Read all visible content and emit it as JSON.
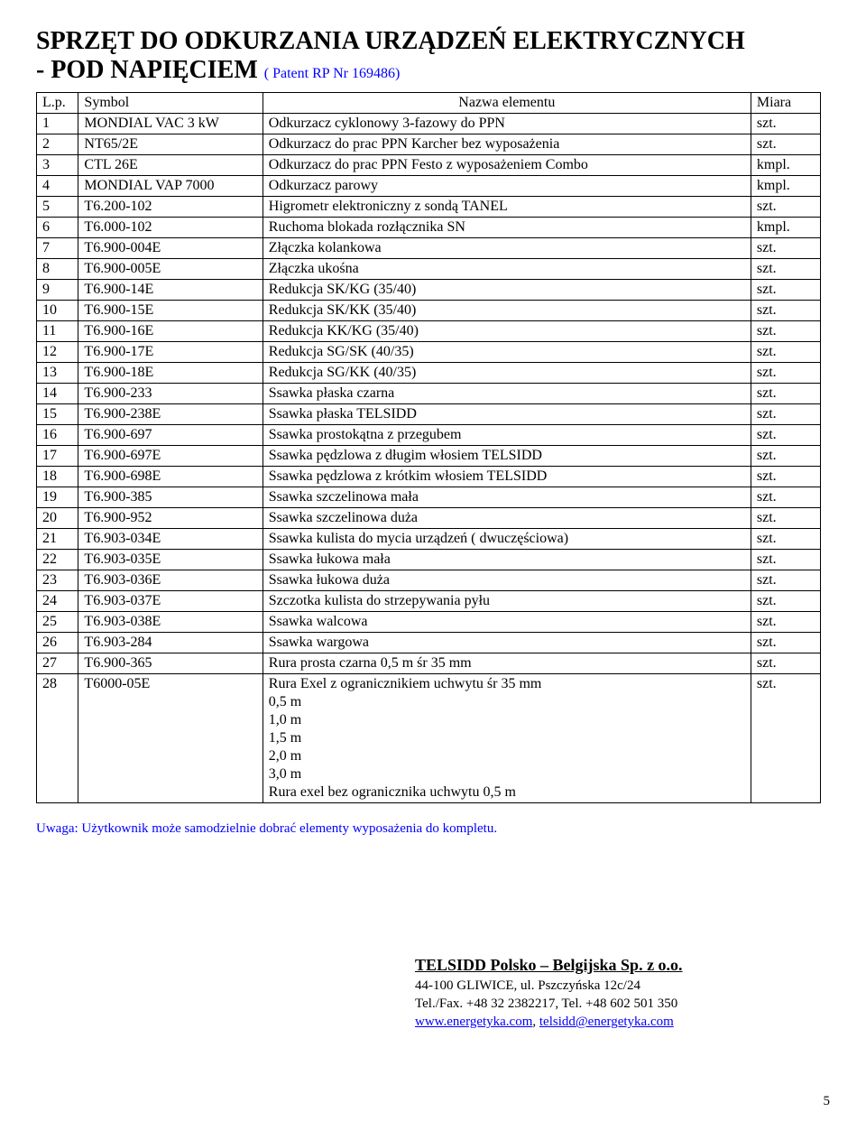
{
  "title_line1": "SPRZĘT DO ODKURZANIA URZĄDZEŃ ELEKTRYCZNYCH",
  "title_line2_prefix": "   - POD NAPIĘCIEM ",
  "patent": "( Patent RP Nr 169486)",
  "table": {
    "headers": {
      "lp": "L.p.",
      "symbol": "Symbol",
      "name": "Nazwa elementu",
      "miara": "Miara"
    },
    "rows": [
      {
        "lp": "1",
        "symbol": "MONDIAL VAC 3 kW",
        "name": "Odkurzacz cyklonowy 3-fazowy do PPN",
        "miara": "szt."
      },
      {
        "lp": "2",
        "symbol": "NT65/2E",
        "name": "Odkurzacz do prac PPN Karcher bez wyposażenia",
        "miara": "szt."
      },
      {
        "lp": "3",
        "symbol": "CTL 26E",
        "name": "Odkurzacz do prac PPN Festo z wyposażeniem Combo",
        "miara": "kmpl."
      },
      {
        "lp": "4",
        "symbol": "MONDIAL VAP 7000",
        "name": "Odkurzacz parowy",
        "miara": "kmpl."
      },
      {
        "lp": "5",
        "symbol": "T6.200-102",
        "name": "Higrometr elektroniczny z sondą TANEL",
        "miara": "szt."
      },
      {
        "lp": "6",
        "symbol": "T6.000-102",
        "name": "Ruchoma blokada rozłącznika SN",
        "miara": "kmpl."
      },
      {
        "lp": "7",
        "symbol": "T6.900-004E",
        "name": "Złączka kolankowa",
        "miara": "szt."
      },
      {
        "lp": "8",
        "symbol": "T6.900-005E",
        "name": "Złączka ukośna",
        "miara": "szt."
      },
      {
        "lp": "9",
        "symbol": "T6.900-14E",
        "name": "Redukcja SK/KG (35/40)",
        "miara": "szt."
      },
      {
        "lp": "10",
        "symbol": "T6.900-15E",
        "name": "Redukcja SK/KK (35/40)",
        "miara": "szt."
      },
      {
        "lp": "11",
        "symbol": "T6.900-16E",
        "name": "Redukcja KK/KG (35/40)",
        "miara": "szt."
      },
      {
        "lp": "12",
        "symbol": "T6.900-17E",
        "name": "Redukcja SG/SK (40/35)",
        "miara": "szt."
      },
      {
        "lp": "13",
        "symbol": "T6.900-18E",
        "name": "Redukcja SG/KK (40/35)",
        "miara": "szt."
      },
      {
        "lp": "14",
        "symbol": "T6.900-233",
        "name": "Ssawka płaska czarna",
        "miara": "szt."
      },
      {
        "lp": "15",
        "symbol": "T6.900-238E",
        "name": "Ssawka płaska TELSIDD",
        "miara": "szt."
      },
      {
        "lp": "16",
        "symbol": "T6.900-697",
        "name": "Ssawka prostokątna z przegubem",
        "miara": "szt."
      },
      {
        "lp": "17",
        "symbol": "T6.900-697E",
        "name": "Ssawka pędzlowa z długim włosiem TELSIDD",
        "miara": "szt."
      },
      {
        "lp": "18",
        "symbol": "T6.900-698E",
        "name": "Ssawka pędzlowa z krótkim włosiem TELSIDD",
        "miara": "szt."
      },
      {
        "lp": "19",
        "symbol": "T6.900-385",
        "name": "Ssawka szczelinowa mała",
        "miara": "szt."
      },
      {
        "lp": "20",
        "symbol": "T6.900-952",
        "name": "Ssawka szczelinowa duża",
        "miara": "szt."
      },
      {
        "lp": "21",
        "symbol": "T6.903-034E",
        "name": "Ssawka kulista do mycia urządzeń ( dwuczęściowa)",
        "miara": "szt."
      },
      {
        "lp": "22",
        "symbol": "T6.903-035E",
        "name": "Ssawka łukowa mała",
        "miara": "szt."
      },
      {
        "lp": "23",
        "symbol": "T6.903-036E",
        "name": "Ssawka łukowa duża",
        "miara": "szt."
      },
      {
        "lp": "24",
        "symbol": "T6.903-037E",
        "name": "Szczotka kulista do strzepywania pyłu",
        "miara": "szt."
      },
      {
        "lp": "25",
        "symbol": "T6.903-038E",
        "name": "Ssawka walcowa",
        "miara": "szt."
      },
      {
        "lp": "26",
        "symbol": "T6.903-284",
        "name": "Ssawka wargowa",
        "miara": "szt."
      },
      {
        "lp": "27",
        "symbol": "T6.900-365",
        "name": "Rura prosta czarna 0,5 m śr 35 mm",
        "miara": "szt."
      },
      {
        "lp": "28",
        "symbol": "T6000-05E",
        "name": "Rura Exel z ogranicznikiem uchwytu śr 35 mm\n0,5 m\n1,0 m\n1,5 m\n2,0 m\n3,0 m\nRura exel bez ogranicznika uchwytu 0,5 m",
        "miara": "szt."
      }
    ]
  },
  "note": "Uwaga: Użytkownik może samodzielnie dobrać elementy wyposażenia do kompletu.",
  "footer": {
    "company": "TELSIDD Polsko – Belgijska Sp. z o.o.",
    "address": "44-100 GLIWICE, ul. Pszczyńska 12c/24",
    "phone": "Tel./Fax. +48 32 2382217, Tel. +48 602 501 350",
    "web": "www.energetyka.com",
    "sep": ", ",
    "email": "telsidd@energetyka.com"
  },
  "pagenum": "5"
}
